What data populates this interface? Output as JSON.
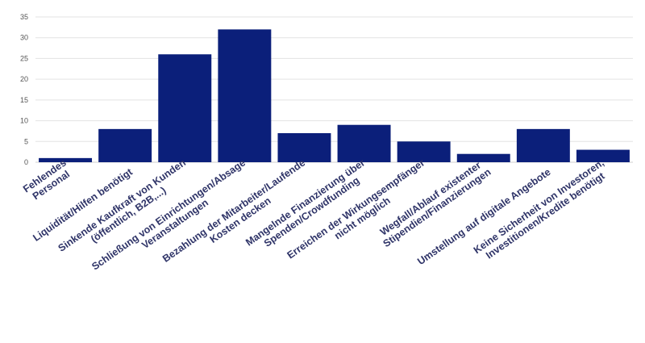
{
  "chart_data": {
    "type": "bar",
    "categories": [
      [
        "Fehlendes",
        "Personal"
      ],
      [
        "Liquidität/Hilfen benötigt"
      ],
      [
        "Sinkende Kaufkraft von Kunden",
        "(öffentlich, B2B,...)"
      ],
      [
        "Schließung von Einrichtungen/Absage",
        "Veranstaltungen"
      ],
      [
        "Bezahlung der Mitarbeiter/Laufende",
        "Kosten decken"
      ],
      [
        "Mangelnde Finanzierung über",
        "Spenden/Crowdfunding"
      ],
      [
        "Erreichen der Wirkungsempfänger",
        "nicht möglich"
      ],
      [
        "Wegfall/Ablauf existenter",
        "Stipendien/Finanzierungen"
      ],
      [
        "Umstellung auf digitale Angebote"
      ],
      [
        "Keine Sicherheit von Investoren,",
        "Investitionen/Kredite benötigt"
      ]
    ],
    "values": [
      1,
      8,
      26,
      32,
      7,
      9,
      5,
      2,
      8,
      3
    ],
    "ylim": [
      0,
      35
    ],
    "yticks": [
      0,
      5,
      10,
      15,
      20,
      25,
      30,
      35
    ],
    "grid": true,
    "legend": "none",
    "colors": {
      "bar": "#0b1f7a",
      "grid": "#e3e3e3",
      "label": "#2f3468"
    }
  }
}
